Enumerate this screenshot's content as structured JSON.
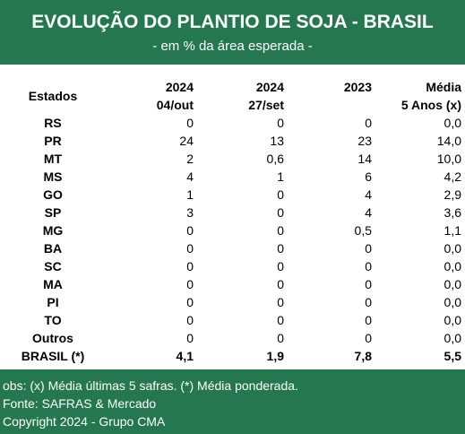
{
  "chart_data": {
    "type": "table",
    "title": "EVOLUÇÃO DO PLANTIO DE SOJA - BRASIL",
    "subtitle": "- em % da área esperada -",
    "columns": [
      {
        "key": "state",
        "line1": "Estados",
        "line2": ""
      },
      {
        "key": "c2024_04out",
        "line1": "2024",
        "line2": "04/out"
      },
      {
        "key": "c2024_27set",
        "line1": "2024",
        "line2": "27/set"
      },
      {
        "key": "c2023",
        "line1": "2023",
        "line2": ""
      },
      {
        "key": "media5",
        "line1": "Média",
        "line2": "5 Anos (x)"
      }
    ],
    "rows": [
      {
        "state": "RS",
        "values": [
          "0",
          "0",
          "0",
          "0,0"
        ]
      },
      {
        "state": "PR",
        "values": [
          "24",
          "13",
          "23",
          "14,0"
        ]
      },
      {
        "state": "MT",
        "values": [
          "2",
          "0,6",
          "14",
          "10,0"
        ]
      },
      {
        "state": "MS",
        "values": [
          "4",
          "1",
          "6",
          "4,2"
        ]
      },
      {
        "state": "GO",
        "values": [
          "1",
          "0",
          "4",
          "2,9"
        ]
      },
      {
        "state": "SP",
        "values": [
          "3",
          "0",
          "4",
          "3,6"
        ]
      },
      {
        "state": "MG",
        "values": [
          "0",
          "0",
          "0,5",
          "1,1"
        ]
      },
      {
        "state": "BA",
        "values": [
          "0",
          "0",
          "0",
          "0,0"
        ]
      },
      {
        "state": "SC",
        "values": [
          "0",
          "0",
          "0",
          "0,0"
        ]
      },
      {
        "state": "MA",
        "values": [
          "0",
          "0",
          "0",
          "0,0"
        ]
      },
      {
        "state": "PI",
        "values": [
          "0",
          "0",
          "0",
          "0,0"
        ]
      },
      {
        "state": "TO",
        "values": [
          "0",
          "0",
          "0",
          "0,0"
        ]
      },
      {
        "state": "Outros",
        "values": [
          "0",
          "0",
          "0",
          "0,0"
        ]
      }
    ],
    "total": {
      "state": "BRASIL (*)",
      "values": [
        "4,1",
        "1,9",
        "7,8",
        "5,5"
      ]
    }
  },
  "footer": {
    "note1": "obs: (x) Média últimas 5 safras. (*) Média ponderada.",
    "note2": "Fonte: SAFRAS & Mercado",
    "note3": "Copyright 2024 - Grupo CMA"
  },
  "colors": {
    "header_bg": "#24774e",
    "header_text": "#ffffff",
    "text": "#000000"
  }
}
